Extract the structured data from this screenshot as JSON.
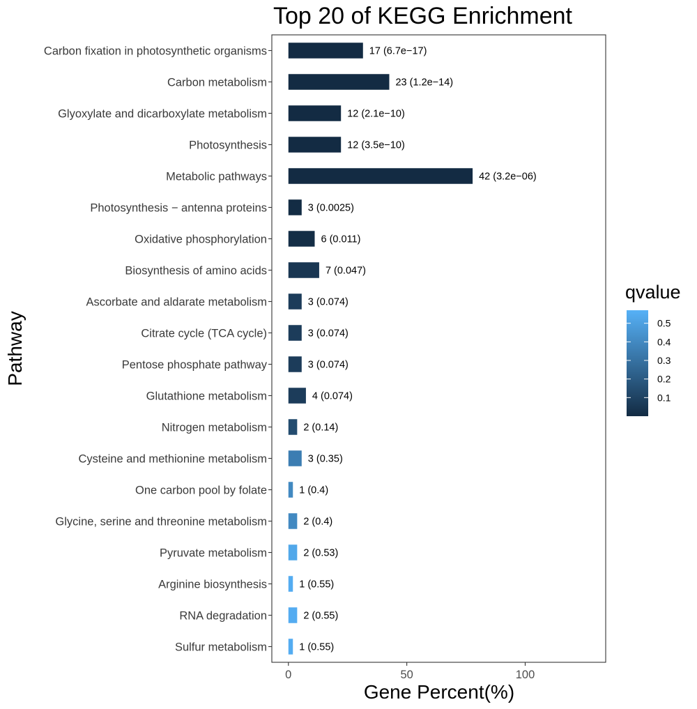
{
  "chart_data": {
    "type": "bar",
    "orientation": "horizontal",
    "title": "Top 20 of KEGG Enrichment",
    "xlabel": "Gene Percent(%)",
    "ylabel": "Pathway",
    "xlim": [
      -7,
      134
    ],
    "xticks": [
      0,
      50,
      100
    ],
    "grid": false,
    "legend": {
      "title": "qvalue",
      "placement": "right",
      "ticks": [
        0.1,
        0.2,
        0.3,
        0.4,
        0.5
      ],
      "range": [
        0.0,
        0.57
      ],
      "color_low": "#132b43",
      "color_high": "#56b1f7"
    },
    "categories": [
      "Carbon fixation in photosynthetic organisms",
      "Carbon metabolism",
      "Glyoxylate and dicarboxylate metabolism",
      "Photosynthesis",
      "Metabolic pathways",
      "Photosynthesis − antenna proteins",
      "Oxidative phosphorylation",
      "Biosynthesis of amino acids",
      "Ascorbate and aldarate metabolism",
      "Citrate cycle (TCA cycle)",
      "Pentose phosphate pathway",
      "Glutathione metabolism",
      "Nitrogen metabolism",
      "Cysteine and methionine metabolism",
      "One carbon pool by folate",
      "Glycine, serine and threonine metabolism",
      "Pyruvate metabolism",
      "Arginine biosynthesis",
      "RNA degradation",
      "Sulfur metabolism"
    ],
    "values": [
      31.5,
      42.6,
      22.2,
      22.2,
      77.8,
      5.6,
      11.1,
      13.0,
      5.6,
      5.6,
      5.6,
      7.4,
      3.7,
      5.6,
      1.9,
      3.7,
      3.7,
      1.9,
      3.7,
      1.9
    ],
    "qvalues": [
      6.7e-17,
      1.2e-14,
      2.1e-10,
      3.5e-10,
      3.2e-06,
      0.0025,
      0.011,
      0.047,
      0.074,
      0.074,
      0.074,
      0.074,
      0.14,
      0.35,
      0.4,
      0.4,
      0.53,
      0.55,
      0.55,
      0.55
    ],
    "bar_labels": [
      "17 (6.7e−17)",
      "23 (1.2e−14)",
      "12 (2.1e−10)",
      "12 (3.5e−10)",
      "42 (3.2e−06)",
      "3 (0.0025)",
      "6 (0.011)",
      "7 (0.047)",
      "3 (0.074)",
      "3 (0.074)",
      "3 (0.074)",
      "4 (0.074)",
      "2 (0.14)",
      "3 (0.35)",
      "1 (0.4)",
      "2 (0.4)",
      "2 (0.53)",
      "1 (0.55)",
      "2 (0.55)",
      "1 (0.55)"
    ]
  }
}
